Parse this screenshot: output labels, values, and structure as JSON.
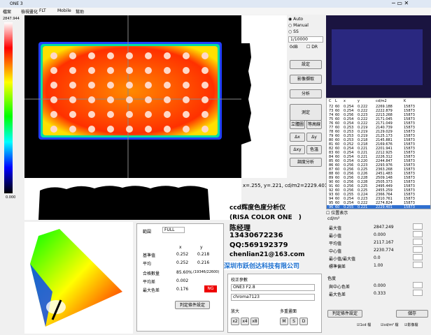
{
  "window": {
    "title": "ONE 3"
  },
  "menu": [
    "檔案",
    "檢視畫化",
    "FLT",
    "Mobile",
    "幫助"
  ],
  "scale": {
    "max": "2847.944",
    "min": "0.000"
  },
  "controls": {
    "modes": [
      "Auto",
      "Manual",
      "SS"
    ],
    "shutter": "1/10000",
    "gain": "0dB",
    "dr": "DR",
    "buttons": [
      "設定",
      "影像擷取",
      "分析",
      "測定"
    ],
    "tools": [
      "立體圖",
      "等高線",
      "Δx",
      "Δy",
      "Δxy",
      "色溫"
    ],
    "adjust": "調度分析"
  },
  "cursor": "x=.255, y=.221, cd/m2=2229.401",
  "table": {
    "header": [
      "C",
      "L",
      "x",
      "y",
      "cd/m2",
      "K"
    ],
    "rows": [
      [
        "72",
        "60",
        "0.254",
        "0.222",
        "2269.188",
        "15873"
      ],
      [
        "73",
        "60",
        "0.254",
        "0.222",
        "2222.879",
        "15873"
      ],
      [
        "74",
        "60",
        "0.256",
        "0.223",
        "2213.268",
        "15873"
      ],
      [
        "75",
        "60",
        "0.254",
        "0.222",
        "2171.045",
        "15873"
      ],
      [
        "76",
        "60",
        "0.254",
        "0.222",
        "2171.049",
        "15873"
      ],
      [
        "77",
        "60",
        "0.253",
        "0.219",
        "2140.739",
        "15873"
      ],
      [
        "78",
        "60",
        "0.253",
        "0.219",
        "2129.029",
        "15873"
      ],
      [
        "79",
        "60",
        "0.253",
        "0.219",
        "2125.173",
        "15873"
      ],
      [
        "80",
        "60",
        "0.253",
        "0.218",
        "2145.881",
        "15873"
      ],
      [
        "81",
        "60",
        "0.252",
        "0.218",
        "2169.676",
        "15873"
      ],
      [
        "82",
        "60",
        "0.254",
        "0.221",
        "2201.941",
        "15873"
      ],
      [
        "83",
        "60",
        "0.254",
        "0.221",
        "2212.925",
        "15873"
      ],
      [
        "84",
        "60",
        "0.254",
        "0.221",
        "2226.312",
        "15873"
      ],
      [
        "85",
        "60",
        "0.254",
        "0.220",
        "2244.847",
        "15873"
      ],
      [
        "86",
        "60",
        "0.256",
        "0.223",
        "2293.976",
        "15873"
      ],
      [
        "87",
        "60",
        "0.256",
        "0.225",
        "2363.268",
        "15873"
      ],
      [
        "88",
        "60",
        "0.256",
        "0.226",
        "2451.483",
        "15873"
      ],
      [
        "89",
        "60",
        "0.256",
        "0.228",
        "2509.148",
        "15873"
      ],
      [
        "90",
        "60",
        "0.256",
        "0.228",
        "2505.373",
        "15873"
      ],
      [
        "91",
        "60",
        "0.256",
        "0.225",
        "2495.449",
        "15873"
      ],
      [
        "92",
        "60",
        "0.256",
        "0.225",
        "2455.259",
        "15873"
      ],
      [
        "93",
        "60",
        "0.255",
        "0.224",
        "2366.764",
        "15873"
      ],
      [
        "94",
        "60",
        "0.254",
        "0.223",
        "2310.761",
        "15873"
      ],
      [
        "95",
        "60",
        "0.254",
        "0.222",
        "2274.824",
        "15873"
      ],
      [
        "96",
        "60",
        "0.255",
        "0.221",
        "2229.401",
        "15873"
      ]
    ]
  },
  "stats": {
    "position": "位置表示",
    "unit": "cd/m²",
    "rows": [
      [
        "最大值",
        "2847.249"
      ],
      [
        "最小值",
        "0.000"
      ],
      [
        "平均值",
        "2117.167"
      ],
      [
        "中心值",
        "2230.774"
      ],
      [
        "最小值/最大值",
        "0.0"
      ],
      [
        "標準偏差",
        "1.00"
      ]
    ],
    "chroma": "色度",
    "chroma_rows": [
      [
        "與中心色差",
        "0.000"
      ],
      [
        "最大色差",
        "0.333"
      ]
    ],
    "judge_button": "判定條件設定",
    "save": "儲存",
    "files": [
      "1cd 檔",
      "cd/m² 檔",
      "影像檔"
    ]
  },
  "judge": {
    "range_label": "範圍",
    "range": "FULL",
    "cols": [
      "x",
      "y"
    ],
    "rows": [
      [
        "基準值",
        "0.252",
        "0.218"
      ],
      [
        "平均",
        "0.252",
        "0.216"
      ]
    ],
    "pass_label": "合格數量",
    "pass": "85.60%",
    "pass_count": "(19346/22600)",
    "avg_diff_label": "平均差",
    "avg_diff": "0.002",
    "max_diff_label": "最大色差",
    "max_diff": "0.176",
    "result": "NG",
    "button": "判定條件設定"
  },
  "calib": {
    "title": "校正參數",
    "lens": "ONE3 F2.8",
    "file": "chroma7123",
    "zoom_label": "放大",
    "zoom": [
      "x2",
      "x4",
      "x8"
    ],
    "multi_label": "多重畫面",
    "multi": [
      "M",
      "S",
      "D"
    ]
  },
  "overlay": [
    "ccd辉度色度分析仪",
    "(RISA COLOR ONE　)",
    "陈经理",
    "13430672236",
    "QQ:569192379",
    "chenlian21@163.com",
    "深圳市跃创达科技有限公司"
  ]
}
